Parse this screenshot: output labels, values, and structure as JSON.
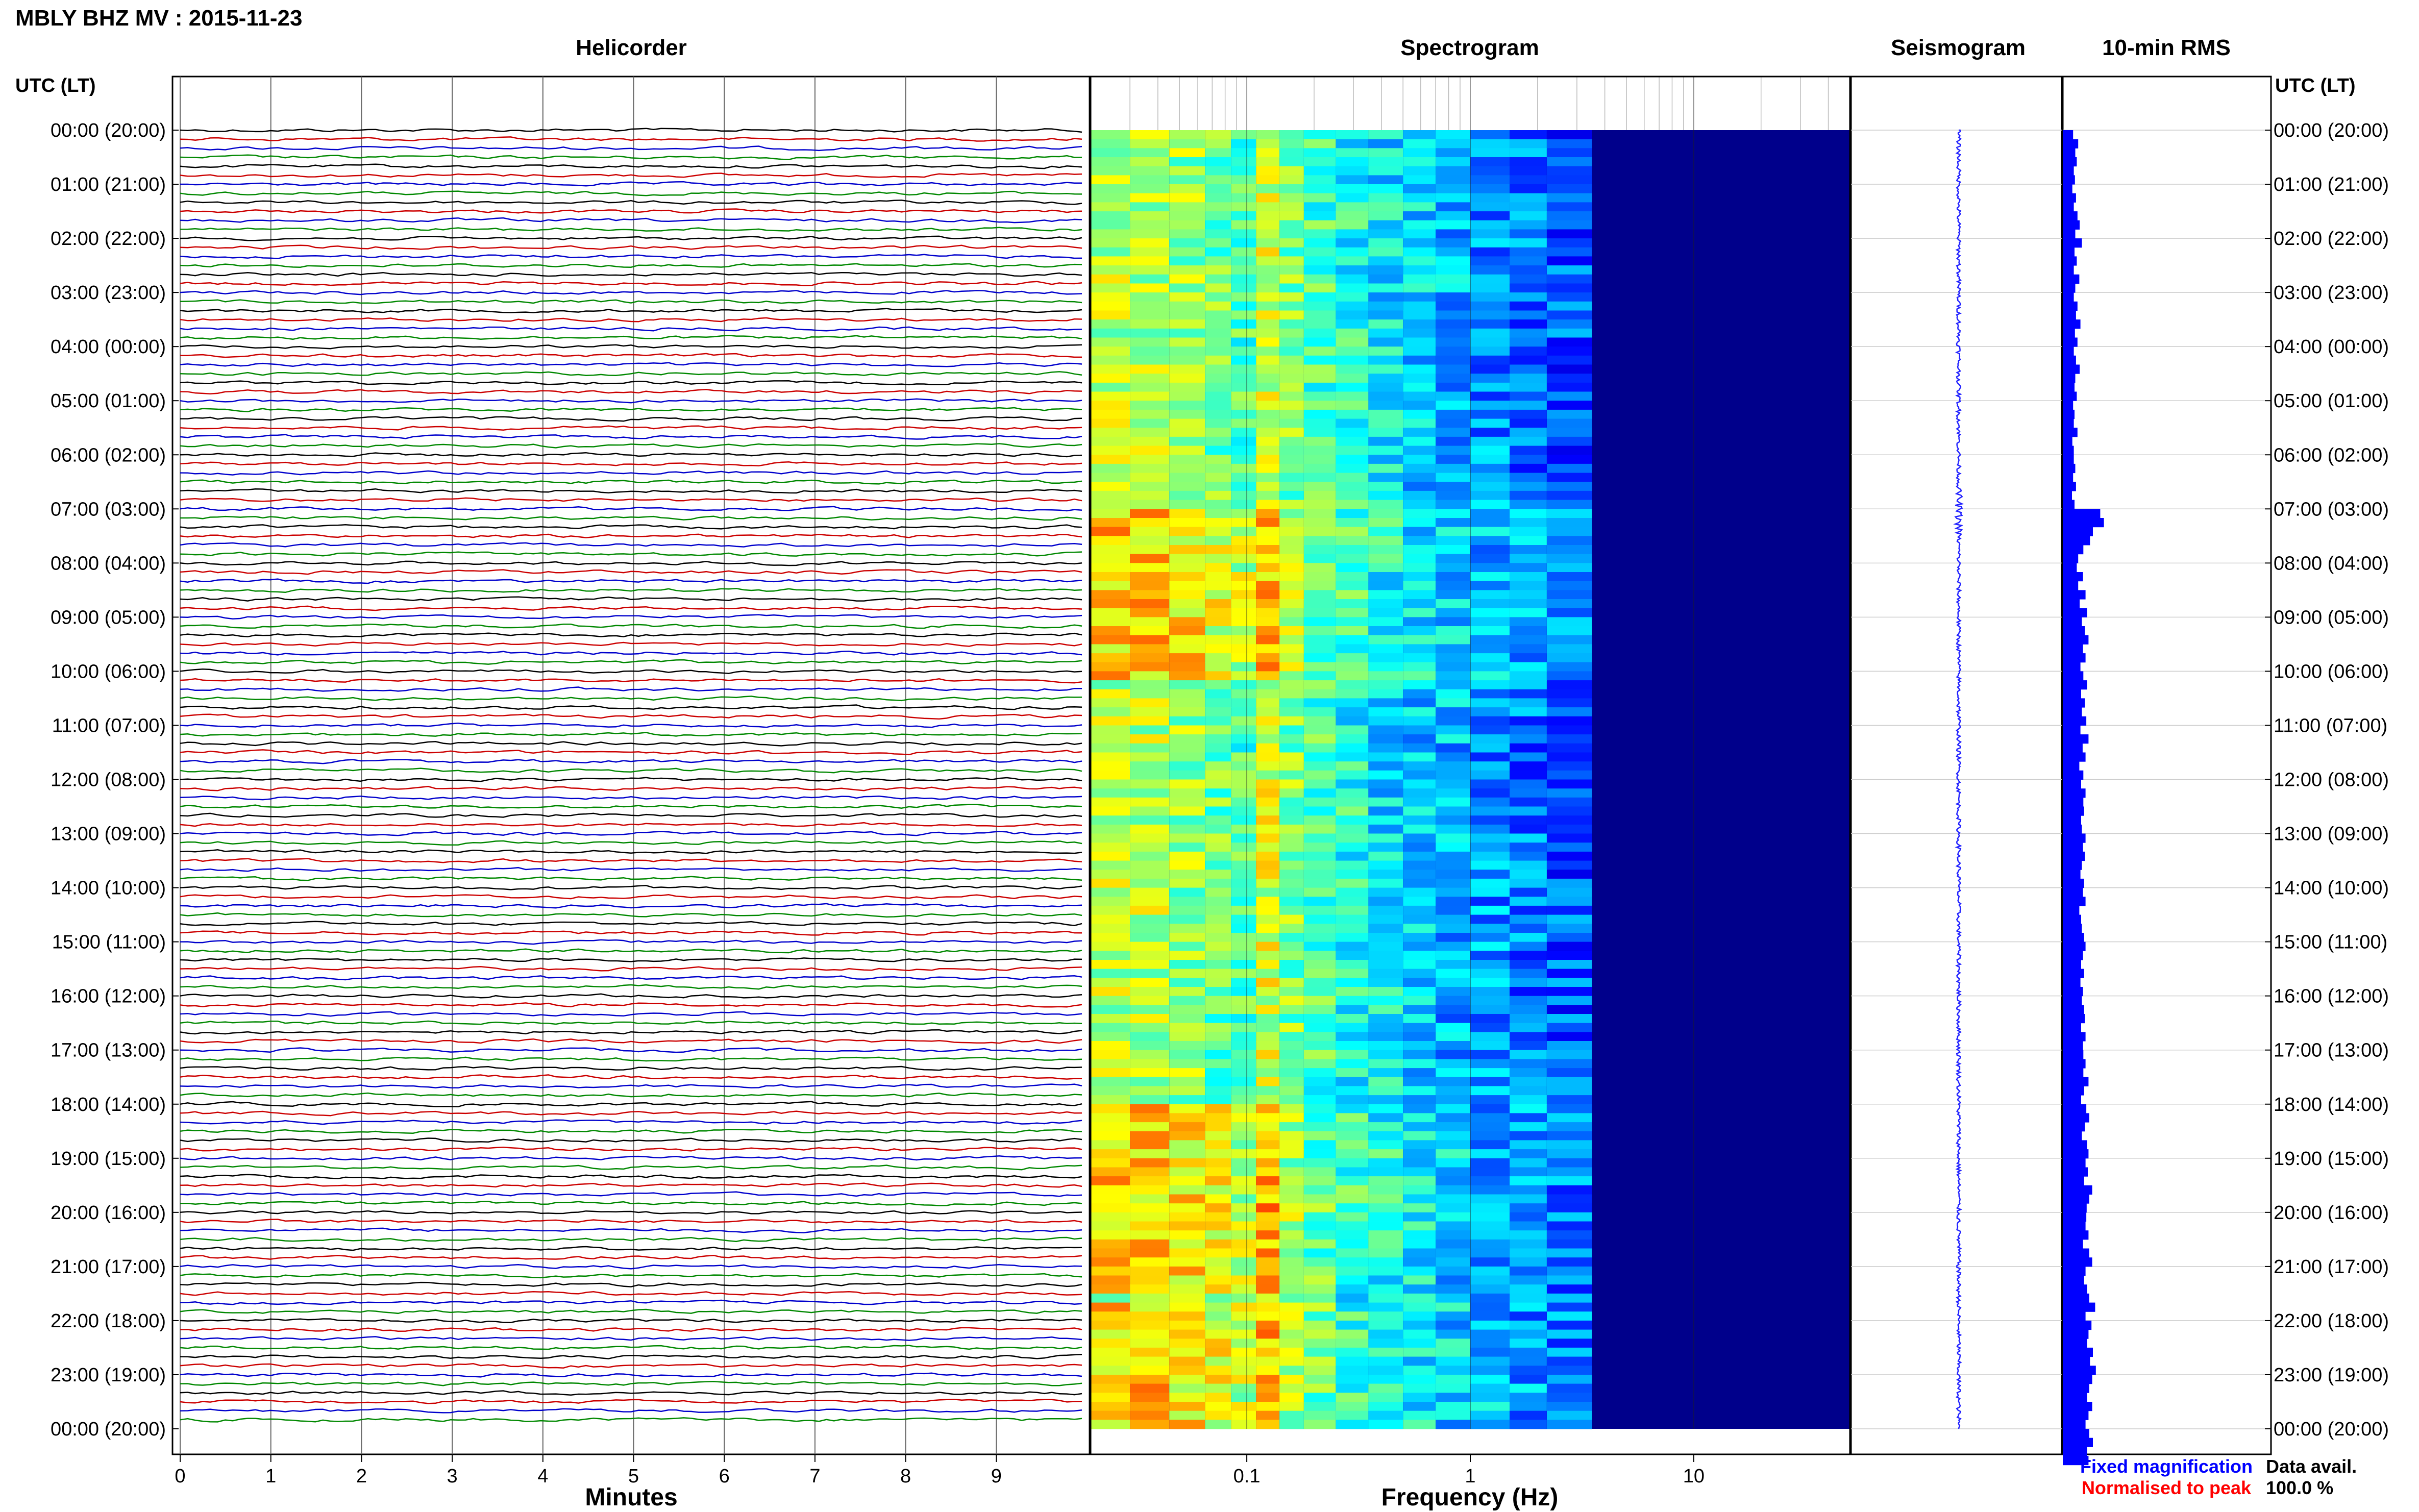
{
  "title": "MBLY BHZ MV : 2015-11-23",
  "panels": {
    "helicorder": "Helicorder",
    "spectrogram": "Spectrogram",
    "seismogram": "Seismogram",
    "rms": "10-min RMS"
  },
  "axis_header_left": "UTC (LT)",
  "axis_header_right": "UTC (LT)",
  "time_labels": [
    "00:00 (20:00)",
    "01:00 (21:00)",
    "02:00 (22:00)",
    "03:00 (23:00)",
    "04:00 (00:00)",
    "05:00 (01:00)",
    "06:00 (02:00)",
    "07:00 (03:00)",
    "08:00 (04:00)",
    "09:00 (05:00)",
    "10:00 (06:00)",
    "11:00 (07:00)",
    "12:00 (08:00)",
    "13:00 (09:00)",
    "14:00 (10:00)",
    "15:00 (11:00)",
    "16:00 (12:00)",
    "17:00 (13:00)",
    "18:00 (14:00)",
    "19:00 (15:00)",
    "20:00 (16:00)",
    "21:00 (17:00)",
    "22:00 (18:00)",
    "23:00 (19:00)",
    "00:00 (20:00)"
  ],
  "legend": {
    "fixed": "Fixed magnification",
    "normalised": "Normalised to peak",
    "fixed_color": "#0000ff",
    "normalised_color": "#ff0000"
  },
  "availability": {
    "label": "Data avail.",
    "value": "100.0 %"
  },
  "colors": {
    "trace_cycle": [
      "#000000",
      "#cc0000",
      "#0000cc",
      "#008800"
    ],
    "rms_bar": "#0000ff",
    "spec_background": "#00008b"
  },
  "chart_data": [
    {
      "type": "line",
      "panel": "helicorder",
      "xlabel": "Minutes",
      "x_ticks": [
        0,
        1,
        2,
        3,
        4,
        5,
        6,
        7,
        8,
        9
      ],
      "xlim": [
        0,
        10
      ],
      "rows_per_hour": 6,
      "hours": 24
    },
    {
      "type": "heatmap",
      "panel": "spectrogram",
      "xlabel": "Frequency (Hz)",
      "x_scale": "log",
      "xlim": [
        0.02,
        50
      ],
      "x_tick_labels": [
        "0.1",
        "1",
        "10"
      ],
      "x_tick_values": [
        0.1,
        1,
        10
      ],
      "colormap": "jet (dark blue low energy to yellow high energy)"
    },
    {
      "type": "line",
      "panel": "seismogram",
      "orientation": "vertical"
    },
    {
      "type": "bar",
      "panel": "10-min RMS",
      "orientation": "horizontal",
      "values": [
        0.28,
        0.42,
        0.34,
        0.38,
        0.3,
        0.33,
        0.26,
        0.36,
        0.3,
        0.4,
        0.46,
        0.34,
        0.52,
        0.32,
        0.38,
        0.3,
        0.45,
        0.34,
        0.3,
        0.4,
        0.36,
        0.48,
        0.33,
        0.4,
        0.3,
        0.36,
        0.46,
        0.34,
        0.32,
        0.38,
        0.28,
        0.32,
        0.3,
        0.4,
        0.26,
        0.3,
        0.3,
        0.34,
        0.28,
        0.36,
        0.25,
        0.32,
        1.02,
        1.12,
        0.82,
        0.74,
        0.56,
        0.42,
        0.38,
        0.55,
        0.42,
        0.62,
        0.46,
        0.66,
        0.52,
        0.6,
        0.7,
        0.55,
        0.62,
        0.48,
        0.56,
        0.66,
        0.5,
        0.6,
        0.52,
        0.64,
        0.48,
        0.7,
        0.54,
        0.62,
        0.45,
        0.56,
        0.5,
        0.62,
        0.56,
        0.58,
        0.5,
        0.52,
        0.62,
        0.55,
        0.6,
        0.52,
        0.48,
        0.58,
        0.55,
        0.62,
        0.45,
        0.5,
        0.52,
        0.58,
        0.62,
        0.55,
        0.5,
        0.58,
        0.48,
        0.55,
        0.52,
        0.58,
        0.6,
        0.5,
        0.62,
        0.55,
        0.56,
        0.62,
        0.56,
        0.7,
        0.58,
        0.5,
        0.64,
        0.72,
        0.6,
        0.52,
        0.66,
        0.7,
        0.62,
        0.68,
        0.58,
        0.8,
        0.72,
        0.65,
        0.64,
        0.62,
        0.7,
        0.55,
        0.72,
        0.8,
        0.62,
        0.58,
        0.66,
        0.72,
        0.88,
        0.62,
        0.78,
        0.7,
        0.66,
        0.82,
        0.74,
        0.9,
        0.8,
        0.72,
        0.66,
        0.8,
        0.7,
        0.62,
        0.72,
        0.82,
        0.66,
        0.7
      ]
    }
  ]
}
